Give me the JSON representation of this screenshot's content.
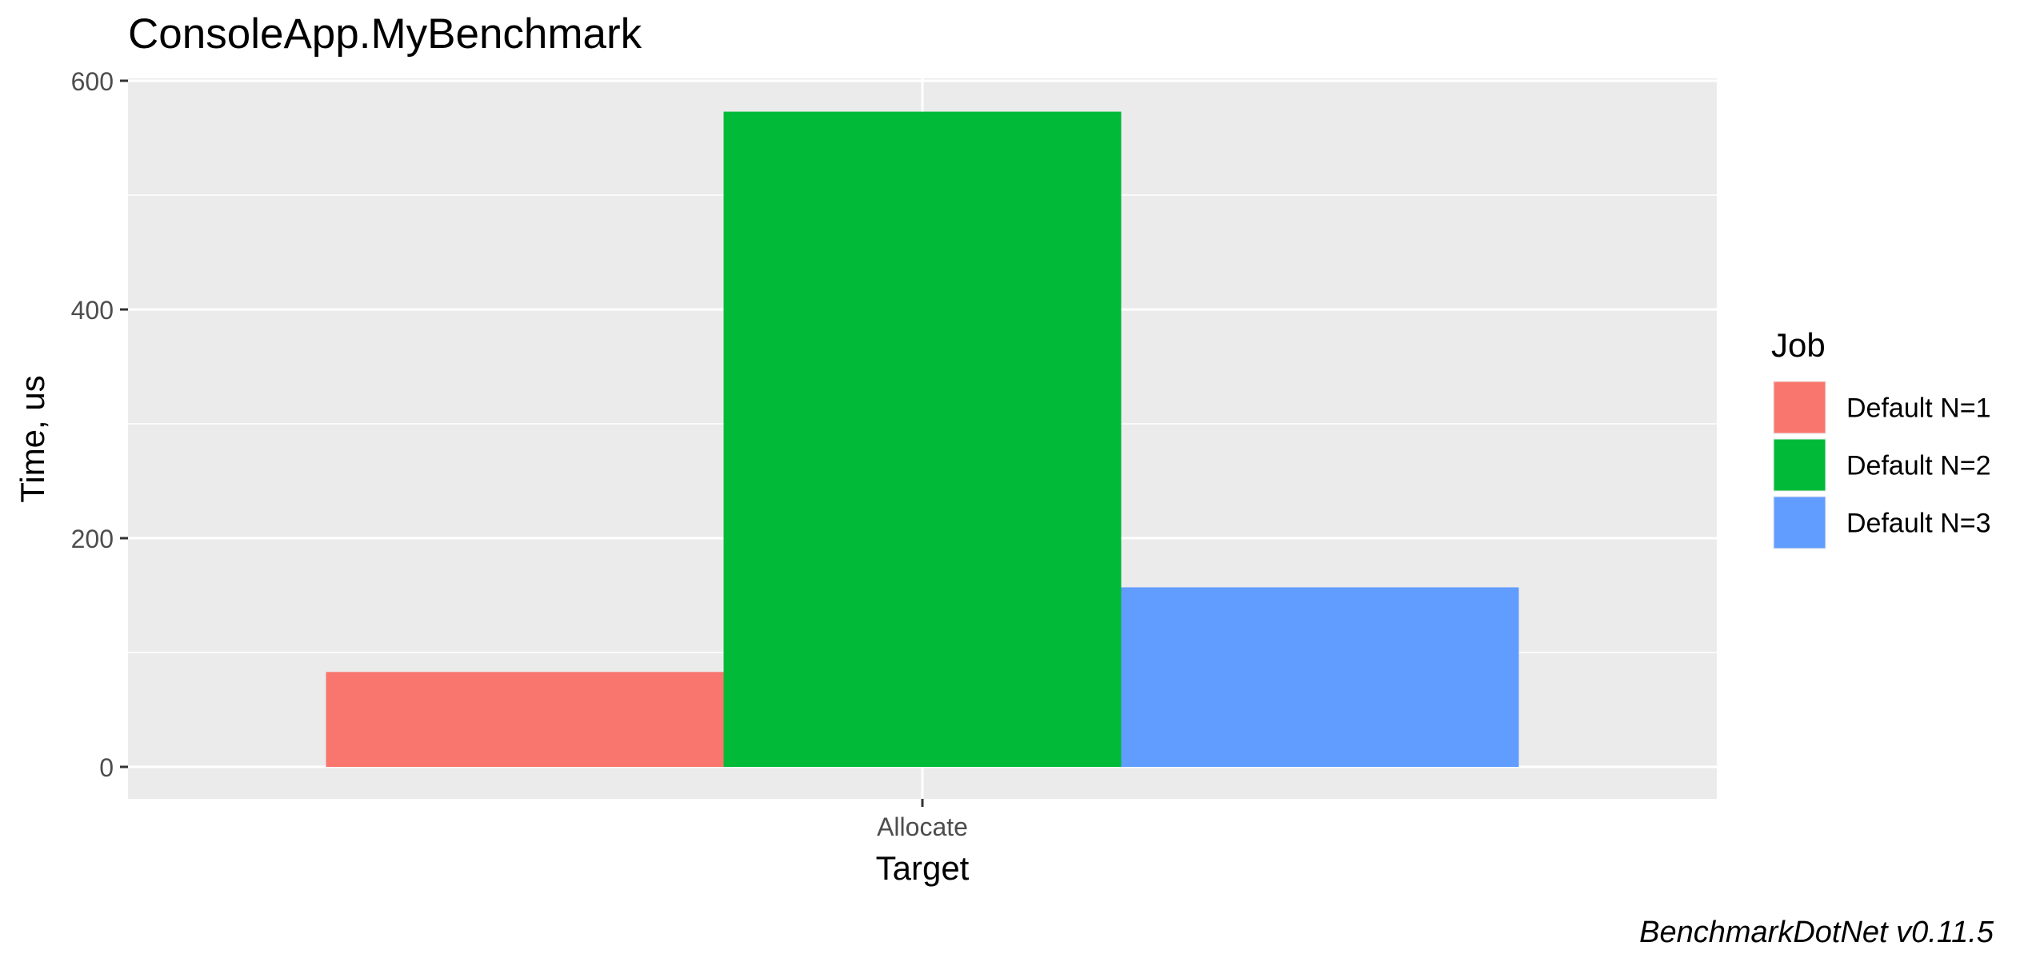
{
  "chart_data": {
    "type": "bar",
    "title": "ConsoleApp.MyBenchmark",
    "xlabel": "Target",
    "ylabel": "Time, us",
    "categories": [
      "Allocate"
    ],
    "series": [
      {
        "name": "Default N=1",
        "values": [
          83
        ],
        "color": "#F8766D"
      },
      {
        "name": "Default N=2",
        "values": [
          573
        ],
        "color": "#00BA38"
      },
      {
        "name": "Default N=3",
        "values": [
          157
        ],
        "color": "#619CFF"
      }
    ],
    "yticks": [
      0,
      200,
      400,
      600
    ],
    "ylim": [
      -27.5,
      600
    ],
    "grid": true,
    "legend": {
      "title": "Job",
      "position": "right"
    },
    "caption": "BenchmarkDotNet v0.11.5"
  }
}
